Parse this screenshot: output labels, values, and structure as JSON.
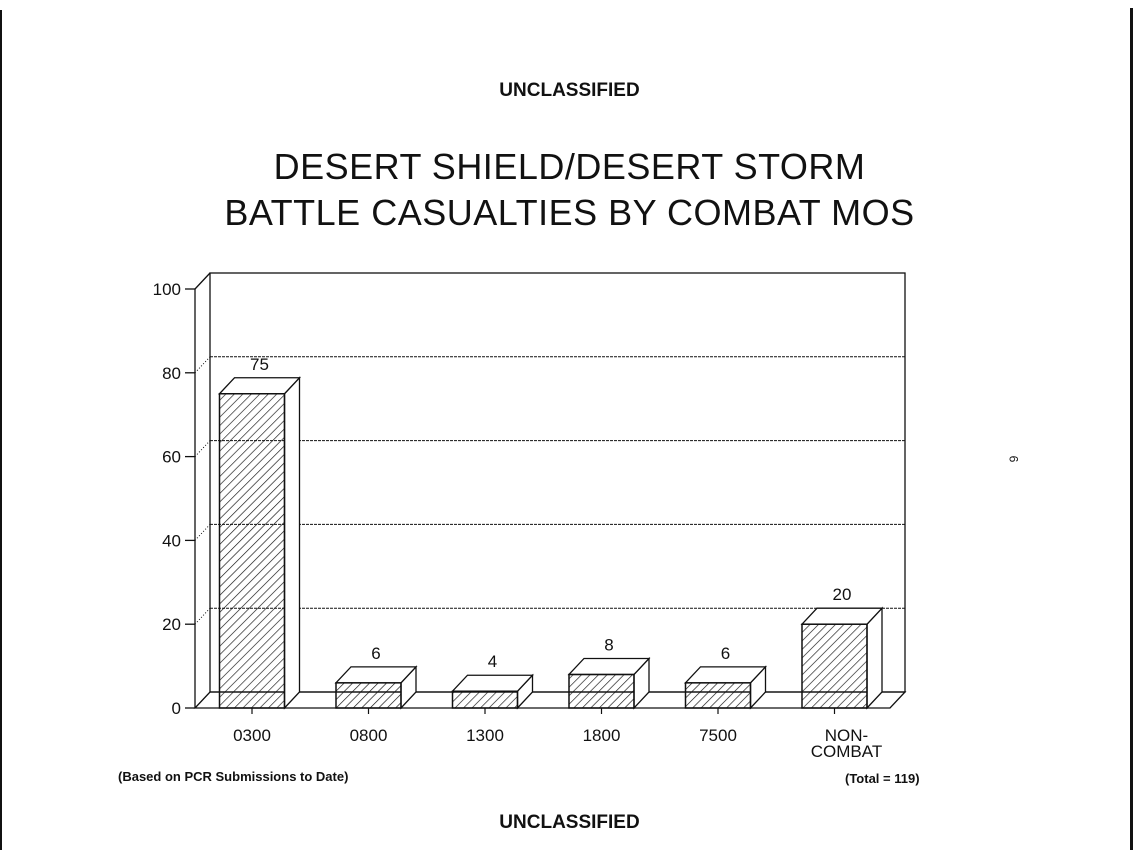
{
  "header": {
    "classification": "UNCLASSIFIED"
  },
  "footer": {
    "classification": "UNCLASSIFIED",
    "source_note": "(Based on PCR Submissions to Date)",
    "total_note": "(Total = 119)"
  },
  "margin_mark": "6",
  "chart_data": {
    "type": "bar",
    "style": "3d hatched bars",
    "title_lines": [
      "DESERT SHIELD/DESERT STORM",
      "BATTLE CASUALTIES BY COMBAT MOS"
    ],
    "categories": [
      "0300",
      "0800",
      "1300",
      "1800",
      "7500",
      "NON-COMBAT"
    ],
    "category_labels": [
      [
        "0300"
      ],
      [
        "0800"
      ],
      [
        "1300"
      ],
      [
        "1800"
      ],
      [
        "7500"
      ],
      [
        "NON-",
        "COMBAT"
      ]
    ],
    "values": [
      75,
      6,
      4,
      8,
      6,
      20
    ],
    "data_labels": [
      "75",
      "6",
      "4",
      "8",
      "6",
      "20"
    ],
    "ylim": [
      0,
      100
    ],
    "yticks": [
      "0",
      "20",
      "40",
      "60",
      "80",
      "100"
    ],
    "grid": true,
    "xlabel": "",
    "ylabel": "",
    "colors": {
      "ink": "#111111",
      "background": "#ffffff"
    }
  }
}
